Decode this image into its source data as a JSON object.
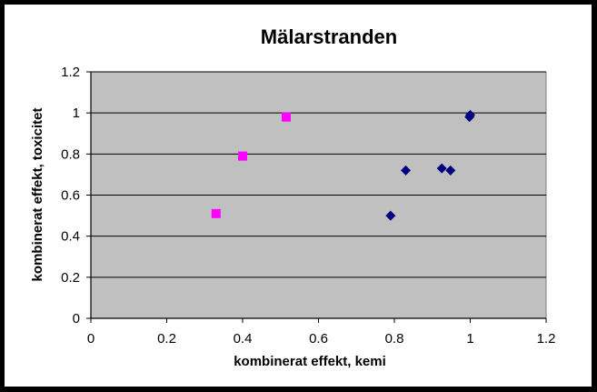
{
  "chart_data": {
    "type": "scatter",
    "title": "Mälarstranden",
    "xlabel": "kombinerat effekt, kemi",
    "ylabel": "kombinerat effekt, toxicitet",
    "xlim": [
      0,
      1.2
    ],
    "ylim": [
      0,
      1.2
    ],
    "xticks": [
      "0",
      "0.2",
      "0.4",
      "0.6",
      "0.8",
      "1",
      "1.2"
    ],
    "yticks": [
      "0",
      "0.2",
      "0.4",
      "0.6",
      "0.8",
      "1",
      "1.2"
    ],
    "grid": "horizontal",
    "plot_background": "#c0c0c0",
    "series": [
      {
        "marker": "diamond",
        "color": "#000080",
        "points": [
          {
            "x": 0.79,
            "y": 0.5
          },
          {
            "x": 0.83,
            "y": 0.72
          },
          {
            "x": 0.925,
            "y": 0.73
          },
          {
            "x": 0.948,
            "y": 0.72
          },
          {
            "x": 0.998,
            "y": 0.98
          },
          {
            "x": 1.0,
            "y": 0.99
          }
        ]
      },
      {
        "marker": "square",
        "color": "#ff00ff",
        "points": [
          {
            "x": 0.33,
            "y": 0.51
          },
          {
            "x": 0.4,
            "y": 0.79
          },
          {
            "x": 0.515,
            "y": 0.98
          }
        ]
      }
    ]
  }
}
